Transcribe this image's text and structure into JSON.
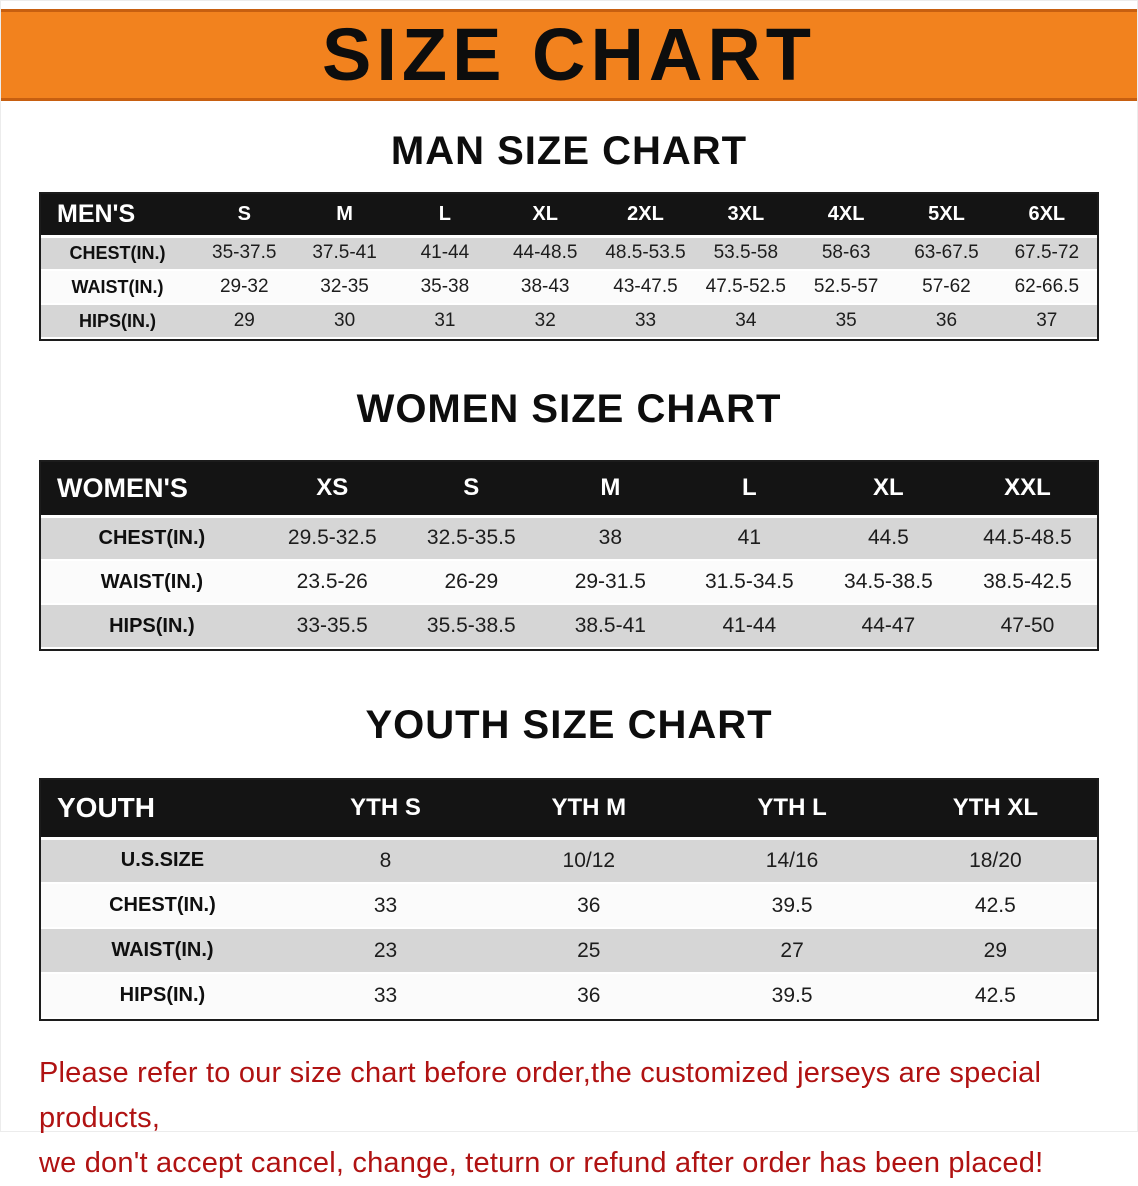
{
  "banner": {
    "title": "SIZE CHART"
  },
  "sections": [
    {
      "heading": "MAN SIZE CHART",
      "table": {
        "header": [
          "MEN'S",
          "S",
          "M",
          "L",
          "XL",
          "2XL",
          "3XL",
          "4XL",
          "5XL",
          "6XL"
        ],
        "rows": [
          [
            "CHEST(IN.)",
            "35-37.5",
            "37.5-41",
            "41-44",
            "44-48.5",
            "48.5-53.5",
            "53.5-58",
            "58-63",
            "63-67.5",
            "67.5-72"
          ],
          [
            "WAIST(IN.)",
            "29-32",
            "32-35",
            "35-38",
            "38-43",
            "43-47.5",
            "47.5-52.5",
            "52.5-57",
            "57-62",
            "62-66.5"
          ],
          [
            "HIPS(IN.)",
            "29",
            "30",
            "31",
            "32",
            "33",
            "34",
            "35",
            "36",
            "37"
          ]
        ]
      }
    },
    {
      "heading": "WOMEN SIZE CHART",
      "table": {
        "header": [
          "WOMEN'S",
          "XS",
          "S",
          "M",
          "L",
          "XL",
          "XXL"
        ],
        "rows": [
          [
            "CHEST(IN.)",
            "29.5-32.5",
            "32.5-35.5",
            "38",
            "41",
            "44.5",
            "44.5-48.5"
          ],
          [
            "WAIST(IN.)",
            "23.5-26",
            "26-29",
            "29-31.5",
            "31.5-34.5",
            "34.5-38.5",
            "38.5-42.5"
          ],
          [
            "HIPS(IN.)",
            "33-35.5",
            "35.5-38.5",
            "38.5-41",
            "41-44",
            "44-47",
            "47-50"
          ]
        ]
      }
    },
    {
      "heading": "YOUTH SIZE CHART",
      "table": {
        "header": [
          "YOUTH",
          "YTH S",
          "YTH M",
          "YTH L",
          "YTH XL"
        ],
        "rows": [
          [
            "U.S.SIZE",
            "8",
            "10/12",
            "14/16",
            "18/20"
          ],
          [
            "CHEST(IN.)",
            "33",
            "36",
            "39.5",
            "42.5"
          ],
          [
            "WAIST(IN.)",
            "23",
            "25",
            "27",
            "29"
          ],
          [
            "HIPS(IN.)",
            "33",
            "36",
            "39.5",
            "42.5"
          ]
        ]
      }
    }
  ],
  "footer": {
    "line1": "Please refer to our size chart before order,the customized jerseys are special products,",
    "line2": "we don't accept cancel, change, teturn or refund after order has been placed!"
  },
  "colors": {
    "banner_bg": "#f2821e",
    "banner_edge": "#c75f10",
    "header_bg": "#141414",
    "stripe": "#d6d6d6",
    "footer_text": "#b01212"
  }
}
